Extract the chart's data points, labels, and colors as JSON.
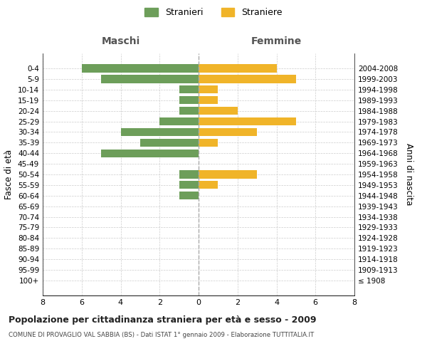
{
  "age_groups": [
    "100+",
    "95-99",
    "90-94",
    "85-89",
    "80-84",
    "75-79",
    "70-74",
    "65-69",
    "60-64",
    "55-59",
    "50-54",
    "45-49",
    "40-44",
    "35-39",
    "30-34",
    "25-29",
    "20-24",
    "15-19",
    "10-14",
    "5-9",
    "0-4"
  ],
  "birth_years": [
    "≤ 1908",
    "1909-1913",
    "1914-1918",
    "1919-1923",
    "1924-1928",
    "1929-1933",
    "1934-1938",
    "1939-1943",
    "1944-1948",
    "1949-1953",
    "1954-1958",
    "1959-1963",
    "1964-1968",
    "1969-1973",
    "1974-1978",
    "1979-1983",
    "1984-1988",
    "1989-1993",
    "1994-1998",
    "1999-2003",
    "2004-2008"
  ],
  "maschi": [
    0,
    0,
    0,
    0,
    0,
    0,
    0,
    0,
    1,
    1,
    1,
    0,
    5,
    3,
    4,
    2,
    1,
    1,
    1,
    5,
    6
  ],
  "femmine": [
    0,
    0,
    0,
    0,
    0,
    0,
    0,
    0,
    0,
    1,
    3,
    0,
    0,
    1,
    3,
    5,
    2,
    1,
    1,
    5,
    4
  ],
  "color_maschi": "#6d9e5a",
  "color_femmine": "#f0b429",
  "title": "Popolazione per cittadinanza straniera per età e sesso - 2009",
  "subtitle": "COMUNE DI PROVAGLIO VAL SABBIA (BS) - Dati ISTAT 1° gennaio 2009 - Elaborazione TUTTITALIA.IT",
  "xlabel_left": "Maschi",
  "xlabel_right": "Femmine",
  "ylabel_left": "Fasce di età",
  "ylabel_right": "Anni di nascita",
  "xlim": 8,
  "legend_maschi": "Stranieri",
  "legend_femmine": "Straniere",
  "background_color": "#ffffff",
  "grid_color": "#cccccc"
}
